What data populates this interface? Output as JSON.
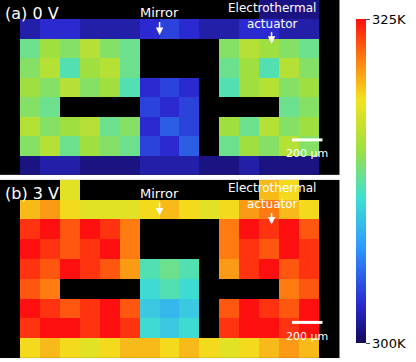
{
  "chart_data": [
    {
      "type": "heatmap",
      "title": "(a) 0 V",
      "annotations": [
        {
          "lines": [
            "Mirror"
          ]
        },
        {
          "lines": [
            "Electrothermal",
            "actuator"
          ]
        }
      ],
      "scale_bar": "200 µm",
      "colorbar": {
        "range": [
          300,
          325
        ],
        "ticks": [
          {
            "value": 300,
            "label": "300K"
          },
          {
            "value": 325,
            "label": "325K"
          }
        ]
      },
      "z": [
        [
          null,
          null,
          null,
          null,
          null,
          null,
          null,
          null,
          null,
          null,
          null,
          null,
          null,
          301,
          301,
          301,
          null
        ],
        [
          null,
          302,
          303,
          303,
          302,
          302,
          302,
          303,
          304,
          303,
          302,
          302,
          303,
          303,
          302,
          302,
          null
        ],
        [
          null,
          313,
          315,
          314,
          316,
          314,
          313,
          null,
          null,
          null,
          null,
          314,
          316,
          315,
          314,
          313,
          null
        ],
        [
          null,
          314,
          316,
          312,
          315,
          316,
          313,
          null,
          null,
          null,
          null,
          313,
          315,
          312,
          316,
          314,
          null
        ],
        [
          null,
          315,
          314,
          316,
          314,
          315,
          312,
          303,
          304,
          303,
          null,
          312,
          315,
          316,
          314,
          315,
          null
        ],
        [
          null,
          314,
          313,
          null,
          null,
          null,
          null,
          304,
          303,
          304,
          null,
          null,
          null,
          null,
          313,
          314,
          null
        ],
        [
          null,
          316,
          314,
          315,
          316,
          313,
          314,
          303,
          305,
          304,
          null,
          315,
          313,
          316,
          314,
          315,
          null
        ],
        [
          null,
          314,
          316,
          313,
          315,
          314,
          313,
          304,
          303,
          305,
          null,
          313,
          315,
          314,
          316,
          314,
          null
        ],
        [
          null,
          301,
          302,
          302,
          301,
          301,
          301,
          302,
          302,
          302,
          301,
          301,
          302,
          301,
          301,
          301,
          null
        ]
      ]
    },
    {
      "type": "heatmap",
      "title": "(b) 3 V",
      "annotations": [
        {
          "lines": [
            "Mirror"
          ]
        },
        {
          "lines": [
            "Electrothermal",
            "actuator"
          ]
        }
      ],
      "scale_bar": "200 µm",
      "colorbar": {
        "range": [
          300,
          325
        ],
        "ticks": [
          {
            "value": 300,
            "label": "300K"
          },
          {
            "value": 325,
            "label": "325K"
          }
        ]
      },
      "z": [
        [
          null,
          null,
          null,
          318,
          null,
          null,
          null,
          null,
          null,
          null,
          null,
          null,
          null,
          320,
          319,
          null,
          null
        ],
        [
          null,
          320,
          321,
          319,
          318,
          318,
          318,
          319,
          320,
          319,
          318,
          319,
          321,
          322,
          320,
          319,
          null
        ],
        [
          null,
          324,
          325,
          323,
          325,
          324,
          322,
          null,
          null,
          null,
          null,
          322,
          325,
          324,
          325,
          323,
          null
        ],
        [
          null,
          325,
          324,
          323,
          324,
          325,
          322,
          null,
          null,
          null,
          null,
          322,
          324,
          323,
          325,
          324,
          null
        ],
        [
          null,
          324,
          323,
          325,
          324,
          323,
          321,
          312,
          313,
          312,
          null,
          321,
          324,
          325,
          323,
          324,
          null
        ],
        [
          null,
          323,
          322,
          null,
          null,
          null,
          null,
          311,
          312,
          311,
          null,
          null,
          null,
          null,
          322,
          323,
          null
        ],
        [
          null,
          325,
          324,
          323,
          324,
          325,
          323,
          310,
          309,
          310,
          null,
          323,
          325,
          324,
          323,
          325,
          null
        ],
        [
          null,
          324,
          325,
          325,
          324,
          325,
          324,
          311,
          310,
          311,
          null,
          324,
          325,
          325,
          324,
          325,
          null
        ],
        [
          null,
          319,
          320,
          319,
          318,
          319,
          320,
          320,
          319,
          320,
          319,
          318,
          319,
          320,
          321,
          320,
          null
        ]
      ]
    }
  ]
}
